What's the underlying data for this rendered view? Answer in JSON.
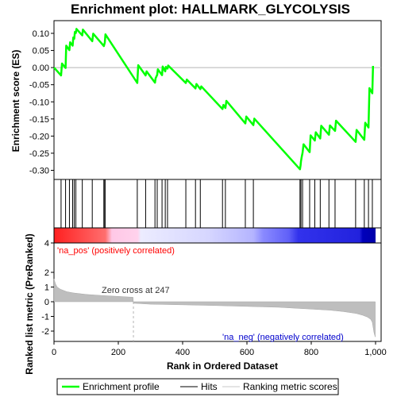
{
  "chart_data": {
    "type": "line",
    "title": "Enrichment plot: HALLMARK_GLYCOLYSIS",
    "xlabel": "Rank in Ordered Dataset",
    "xlim": [
      0,
      1000
    ],
    "xticks": [
      0,
      200,
      400,
      600,
      800,
      "1,000"
    ],
    "top_panel": {
      "ylabel": "Enrichment score (ES)",
      "ylim": [
        -0.32,
        0.13
      ],
      "yticks": [
        "0.10",
        "0.05",
        "0.00",
        "-0.05",
        "-0.10",
        "-0.15",
        "-0.20",
        "-0.25",
        "-0.30"
      ],
      "series_name": "Enrichment profile",
      "es_curve": {
        "x": [
          0,
          22,
          25,
          36,
          38,
          48,
          50,
          58,
          60,
          63,
          65,
          68,
          70,
          88,
          90,
          119,
          122,
          155,
          158,
          159,
          160,
          259,
          262,
          285,
          288,
          314,
          316,
          321,
          323,
          336,
          338,
          346,
          348,
          353,
          355,
          410,
          413,
          440,
          443,
          455,
          458,
          524,
          527,
          533,
          536,
          595,
          598,
          620,
          623,
          765,
          767,
          768,
          770,
          773,
          776,
          795,
          798,
          811,
          814,
          828,
          831,
          855,
          858,
          874,
          877,
          938,
          941,
          965,
          968,
          978,
          981,
          990,
          992
        ],
        "y": [
          0.0,
          -0.023,
          0.012,
          -0.001,
          0.064,
          0.051,
          0.074,
          0.064,
          0.088,
          0.084,
          0.104,
          0.101,
          0.113,
          0.094,
          0.111,
          0.077,
          0.099,
          0.063,
          0.073,
          0.085,
          0.097,
          -0.045,
          0.007,
          -0.023,
          -0.011,
          -0.044,
          -0.031,
          -0.021,
          -0.005,
          -0.022,
          0.003,
          -0.011,
          0.002,
          -0.003,
          0.006,
          -0.045,
          -0.035,
          -0.061,
          -0.048,
          -0.063,
          -0.055,
          -0.121,
          -0.109,
          -0.118,
          -0.097,
          -0.163,
          -0.143,
          -0.168,
          -0.149,
          -0.297,
          -0.285,
          -0.275,
          -0.262,
          -0.248,
          -0.224,
          -0.247,
          -0.198,
          -0.213,
          -0.189,
          -0.207,
          -0.17,
          -0.196,
          -0.169,
          -0.185,
          -0.155,
          -0.217,
          -0.182,
          -0.211,
          -0.161,
          -0.175,
          -0.06,
          -0.075,
          0.005
        ]
      }
    },
    "hits": {
      "series_name": "Hits",
      "positions": [
        22,
        36,
        48,
        58,
        63,
        68,
        88,
        119,
        155,
        158,
        159,
        259,
        285,
        314,
        321,
        336,
        346,
        353,
        410,
        440,
        455,
        524,
        533,
        595,
        620,
        765,
        768,
        773,
        795,
        811,
        828,
        855,
        874,
        938,
        965,
        978,
        990
      ]
    },
    "bottom_panel": {
      "ylabel": "Ranked list metric (PreRanked)",
      "ylim": [
        -2.6,
        4.2
      ],
      "yticks": [
        "4",
        "2",
        "1",
        "0",
        "-1",
        "-2"
      ],
      "series_name": "Ranking metric scores",
      "zero_cross_label": "Zero cross at 247",
      "zero_cross_rank": 247,
      "pos_label": "'na_pos' (positively correlated)",
      "neg_label": "'na_neg' (negatively correlated)",
      "metric_profile": {
        "x": [
          0,
          5,
          10,
          20,
          40,
          60,
          100,
          150,
          200,
          246,
          247,
          300,
          400,
          500,
          600,
          700,
          800,
          860,
          900,
          940,
          960,
          975,
          985,
          990,
          995,
          999
        ],
        "y": [
          1.55,
          1.2,
          1.0,
          0.85,
          0.68,
          0.6,
          0.5,
          0.42,
          0.36,
          0.3,
          -0.1,
          -0.17,
          -0.21,
          -0.26,
          -0.32,
          -0.38,
          -0.5,
          -0.58,
          -0.67,
          -0.8,
          -0.92,
          -1.05,
          -1.2,
          -1.4,
          -2.1,
          -2.4
        ]
      }
    },
    "legend": {
      "position": "bottom",
      "entries": [
        "Enrichment profile",
        "Hits",
        "Ranking metric scores"
      ]
    },
    "colors": {
      "es_line": "#00ff00",
      "hits": "#000000",
      "metric_fill": "#bebebe",
      "zero_line": "#b4b4b4",
      "pos_text": "#ff0000",
      "neg_text": "#0000cc",
      "heat_pos": "#ff0000",
      "heat_neg": "#0000ff"
    }
  }
}
